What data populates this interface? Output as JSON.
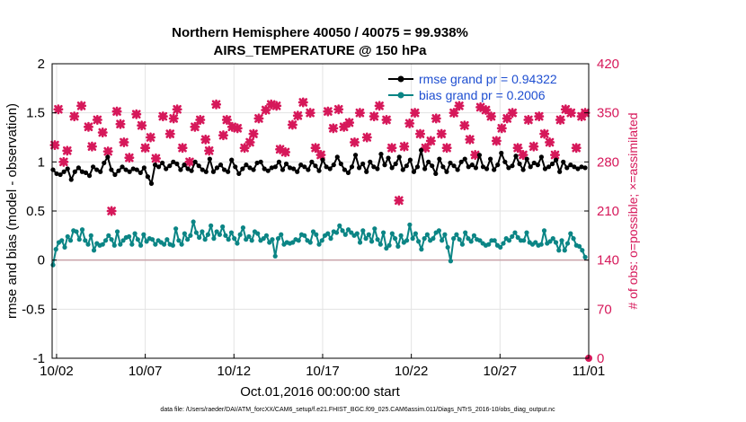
{
  "chart_data": {
    "type": "line",
    "title": "Northern Hemisphere 40050 / 40075 = 99.938%",
    "subtitle": "AIRS_TEMPERATURE @ 150 hPa",
    "xlabel": "Oct.01,2016 00:00:00 start",
    "ylabel": "rmse and bias (model - observation)",
    "ylabel_right": "# of obs: o=possible; ×=assimilated",
    "x_ticks": [
      "10/02",
      "10/07",
      "10/12",
      "10/17",
      "10/22",
      "10/27",
      "11/01"
    ],
    "x_tick_days": [
      1,
      6,
      11,
      16,
      21,
      26,
      31
    ],
    "xlim_days": [
      0.75,
      31
    ],
    "y_ticks": [
      "-1",
      "-0.5",
      "0",
      "0.5",
      "1",
      "1.5",
      "2"
    ],
    "y_tick_values": [
      -1,
      -0.5,
      0,
      0.5,
      1,
      1.5,
      2
    ],
    "ylim": [
      -1,
      2
    ],
    "y2_ticks": [
      "0",
      "70",
      "140",
      "210",
      "280",
      "350",
      "420"
    ],
    "y2_tick_values": [
      0,
      70,
      140,
      210,
      280,
      350,
      420
    ],
    "y2lim": [
      0,
      420
    ],
    "grid": true,
    "legend_position": "top-right",
    "colors": {
      "rmse": "#000000",
      "bias": "#0b8585",
      "obs": "#d6185a",
      "legend_text": "#1f4fd1",
      "zero_line": "#c9a2a8",
      "grid": "#e3e3e3"
    },
    "series": [
      {
        "name": "rmse grand pr = 0.94322",
        "values": [
          0.92,
          0.88,
          0.87,
          0.9,
          0.93,
          0.82,
          0.9,
          0.94,
          0.9,
          0.89,
          0.86,
          0.95,
          0.92,
          0.9,
          0.99,
          1.05,
          0.92,
          0.87,
          0.91,
          0.95,
          0.92,
          0.9,
          0.93,
          0.92,
          0.89,
          0.94,
          0.85,
          0.78,
          0.97,
          0.95,
          0.99,
          0.93,
          0.96,
          1.0,
          0.98,
          0.92,
          0.97,
          0.93,
          0.91,
          1.0,
          0.96,
          0.92,
          0.9,
          1.03,
          0.9,
          0.94,
          0.97,
          0.92,
          0.9,
          1.02,
          0.95,
          0.88,
          0.93,
          0.97,
          0.94,
          0.92,
          0.99,
          1.0,
          0.93,
          0.91,
          0.94,
          0.95,
          1.0,
          0.92,
          0.98,
          0.94,
          0.93,
          0.9,
          0.97,
          0.95,
          0.92,
          1.0,
          0.96,
          0.91,
          1.02,
          0.95,
          0.93,
          0.97,
          1.05,
          0.98,
          0.92,
          0.89,
          0.95,
          1.07,
          0.94,
          0.98,
          0.9,
          1.0,
          0.95,
          0.93,
          1.08,
          0.97,
          1.04,
          0.94,
          0.98,
          1.05,
          0.92,
          0.96,
          1.02,
          0.9,
          0.95,
          1.12,
          0.93,
          1.0,
          0.96,
          0.88,
          1.03,
          0.95,
          0.9,
          0.99,
          0.96,
          0.92,
          1.0,
          1.03,
          0.95,
          0.97,
          0.94,
          1.07,
          0.95,
          0.93,
          1.03,
          0.92,
          0.97,
          1.09,
          1.0,
          0.94,
          0.96,
          1.06,
          0.98,
          0.92,
          1.03,
          0.95,
          0.99,
          0.97,
          1.05,
          0.93,
          0.95,
          0.98,
          1.02,
          0.9,
          1.0,
          0.94,
          0.97,
          0.95,
          0.93,
          0.95,
          0.94
        ]
      },
      {
        "name": "bias grand pr = 0.2006",
        "values": [
          -0.05,
          0.11,
          0.18,
          0.2,
          0.13,
          0.24,
          0.2,
          0.3,
          0.29,
          0.21,
          0.31,
          0.2,
          0.16,
          0.25,
          0.1,
          0.17,
          0.15,
          0.16,
          0.2,
          0.25,
          0.21,
          0.15,
          0.29,
          0.16,
          0.2,
          0.23,
          0.24,
          0.16,
          0.27,
          0.21,
          0.15,
          0.26,
          0.19,
          0.22,
          0.21,
          0.16,
          0.2,
          0.18,
          0.16,
          0.21,
          0.16,
          0.15,
          0.32,
          0.2,
          0.16,
          0.27,
          0.21,
          0.25,
          0.39,
          0.28,
          0.23,
          0.29,
          0.21,
          0.26,
          0.35,
          0.22,
          0.29,
          0.26,
          0.34,
          0.25,
          0.21,
          0.28,
          0.22,
          0.17,
          0.26,
          0.33,
          0.21,
          0.24,
          0.2,
          0.29,
          0.27,
          0.2,
          0.22,
          0.25,
          0.18,
          0.21,
          0.04,
          0.22,
          0.26,
          0.16,
          0.18,
          0.17,
          0.18,
          0.21,
          0.2,
          0.26,
          0.25,
          0.2,
          0.18,
          0.29,
          0.26,
          0.16,
          0.2,
          0.25,
          0.27,
          0.22,
          0.29,
          0.28,
          0.35,
          0.3,
          0.26,
          0.31,
          0.28,
          0.25,
          0.27,
          0.18,
          0.3,
          0.22,
          0.26,
          0.19,
          0.32,
          0.21,
          0.16,
          0.28,
          0.12,
          0.15,
          0.27,
          0.22,
          0.14,
          0.25,
          0.18,
          0.2,
          0.36,
          0.22,
          0.27,
          0.19,
          0.11,
          0.22,
          0.26,
          0.2,
          0.22,
          0.28,
          0.3,
          0.2,
          0.26,
          0.13,
          -0.01,
          0.22,
          0.26,
          0.21,
          0.16,
          0.28,
          0.22,
          0.19,
          0.25,
          0.21,
          0.2,
          0.17,
          0.15,
          0.16,
          0.2,
          0.2,
          0.15,
          0.13,
          0.17,
          0.22,
          0.2,
          0.24,
          0.28,
          0.23,
          0.2,
          0.2,
          0.28,
          0.18,
          0.16,
          0.18,
          0.15,
          0.16,
          0.3,
          0.17,
          0.19,
          0.22,
          0.18,
          0.1,
          0.2,
          0.1,
          0.17,
          0.27,
          0.22,
          0.15,
          0.14,
          0.1,
          0.03
        ]
      },
      {
        "name": "# of obs assimilated",
        "axis": "right",
        "x_days": [
          0.9,
          1.1,
          1.4,
          1.6,
          2.0,
          2.4,
          2.8,
          3.0,
          3.3,
          3.6,
          3.9,
          4.1,
          4.4,
          4.6,
          4.8,
          5.1,
          5.5,
          5.8,
          6.0,
          6.3,
          6.6,
          7.0,
          7.4,
          7.6,
          7.8,
          8.1,
          8.5,
          8.8,
          9.1,
          9.4,
          9.6,
          10.0,
          10.4,
          10.6,
          10.9,
          11.2,
          11.6,
          11.9,
          12.1,
          12.4,
          12.8,
          13.1,
          13.4,
          13.6,
          13.9,
          14.3,
          14.6,
          14.9,
          15.3,
          15.6,
          15.9,
          16.3,
          16.6,
          16.9,
          17.2,
          17.5,
          17.8,
          18.1,
          18.5,
          18.9,
          19.2,
          19.6,
          19.9,
          20.3,
          20.6,
          20.9,
          21.2,
          21.5,
          21.8,
          22.1,
          22.4,
          22.7,
          23.0,
          23.4,
          23.7,
          24.0,
          24.3,
          24.6,
          24.9,
          25.2,
          25.5,
          25.8,
          26.1,
          26.4,
          26.7,
          27.0,
          27.3,
          27.6,
          27.9,
          28.2,
          28.5,
          28.8,
          29.1,
          29.4,
          29.7,
          30.0,
          30.3,
          30.6,
          30.8
        ],
        "values": [
          304,
          355,
          280,
          296,
          345,
          360,
          330,
          302,
          340,
          322,
          295,
          210,
          352,
          334,
          308,
          286,
          348,
          332,
          300,
          315,
          285,
          345,
          320,
          342,
          355,
          300,
          280,
          330,
          340,
          312,
          296,
          362,
          318,
          340,
          330,
          328,
          300,
          308,
          320,
          342,
          354,
          362,
          360,
          298,
          294,
          333,
          346,
          365,
          350,
          300,
          290,
          352,
          328,
          355,
          330,
          336,
          308,
          350,
          315,
          345,
          360,
          340,
          300,
          225,
          302,
          335,
          350,
          320,
          300,
          310,
          342,
          320,
          300,
          350,
          360,
          332,
          312,
          290,
          358,
          354,
          345,
          310,
          328,
          342,
          350,
          300,
          290,
          340,
          302,
          345,
          320,
          308,
          290,
          340,
          355,
          350,
          300,
          345,
          350
        ]
      }
    ],
    "footer": "data file: /Users/raeder/DAI/ATM_forcXX/CAM6_setup/f.e21.FHIST_BGC.f09_025.CAM6assim.011/Diags_NTrS_2016-10/obs_diag_output.nc"
  }
}
